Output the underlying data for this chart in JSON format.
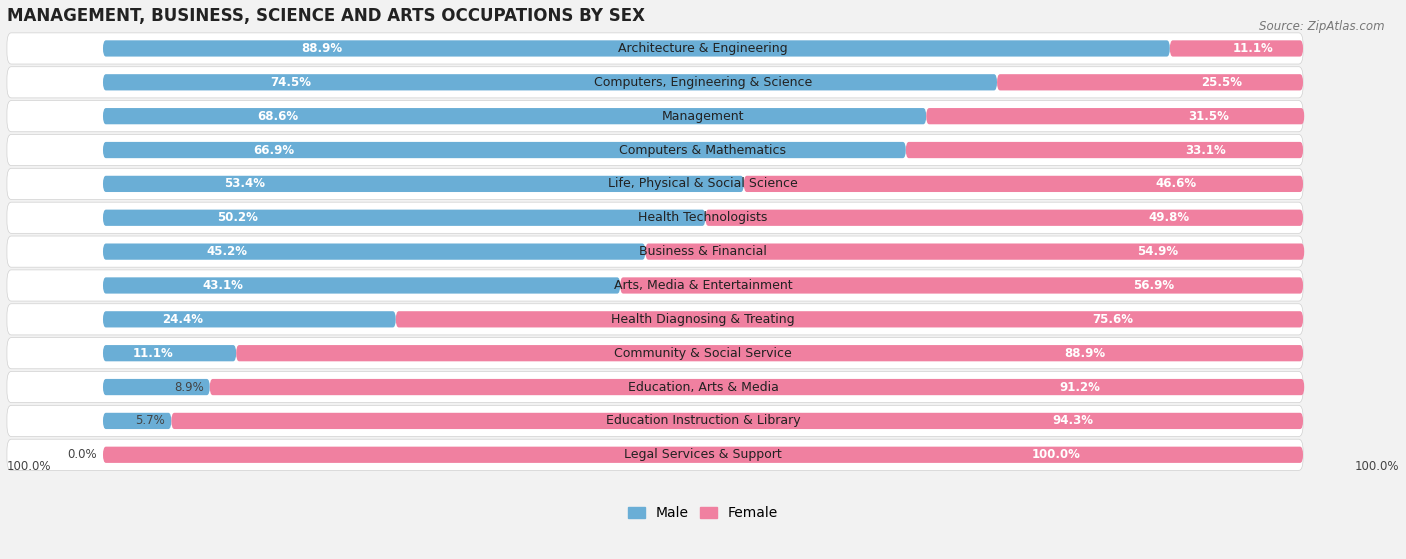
{
  "title": "MANAGEMENT, BUSINESS, SCIENCE AND ARTS OCCUPATIONS BY SEX",
  "source": "Source: ZipAtlas.com",
  "categories": [
    "Architecture & Engineering",
    "Computers, Engineering & Science",
    "Management",
    "Computers & Mathematics",
    "Life, Physical & Social Science",
    "Health Technologists",
    "Business & Financial",
    "Arts, Media & Entertainment",
    "Health Diagnosing & Treating",
    "Community & Social Service",
    "Education, Arts & Media",
    "Education Instruction & Library",
    "Legal Services & Support"
  ],
  "male": [
    88.9,
    74.5,
    68.6,
    66.9,
    53.4,
    50.2,
    45.2,
    43.1,
    24.4,
    11.1,
    8.9,
    5.7,
    0.0
  ],
  "female": [
    11.1,
    25.5,
    31.5,
    33.1,
    46.6,
    49.8,
    54.9,
    56.9,
    75.6,
    88.9,
    91.2,
    94.3,
    100.0
  ],
  "male_color": "#6aaed6",
  "female_color": "#f080a0",
  "bg_color": "#f2f2f2",
  "row_bg_color": "#e8e8e8",
  "title_fontsize": 12,
  "label_fontsize": 9,
  "bar_value_fontsize": 8.5,
  "legend_fontsize": 10
}
